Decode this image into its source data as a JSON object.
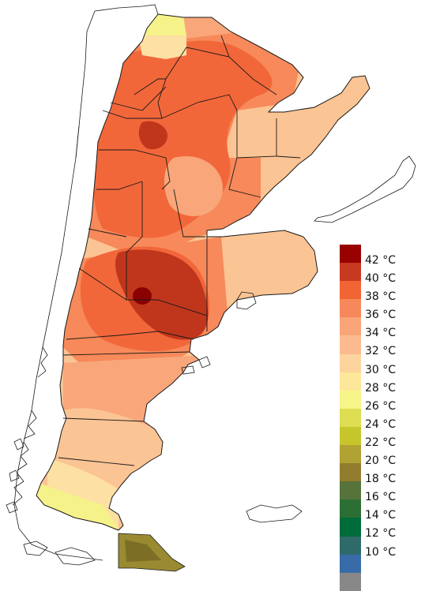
{
  "map": {
    "region": "Argentina",
    "colors": {
      "sea": "#ffffff",
      "outline": "#1a1a1a",
      "heat_darkest": "#8b0000",
      "heat_dark": "#c0361c",
      "heat_high": "#f2673a",
      "heat_mid": "#f7895a",
      "heat_low": "#f9a77a",
      "warm": "#fbc494",
      "mild": "#fde0a3",
      "cool_yellow": "#f6f28a",
      "olive": "#9a8a32"
    }
  },
  "legend": {
    "entries": [
      {
        "label": "42 °C",
        "color": "#990000"
      },
      {
        "label": "40 °C",
        "color": "#c83a20"
      },
      {
        "label": "38 °C",
        "color": "#f26433"
      },
      {
        "label": "36 °C",
        "color": "#f7885b"
      },
      {
        "label": "34 °C",
        "color": "#f9a479"
      },
      {
        "label": "32 °C",
        "color": "#fbbb8f"
      },
      {
        "label": "30 °C",
        "color": "#fdd49e"
      },
      {
        "label": "28 °C",
        "color": "#fde79b"
      },
      {
        "label": "26 °C",
        "color": "#f7f58a"
      },
      {
        "label": "24 °C",
        "color": "#dede52"
      },
      {
        "label": "22 °C",
        "color": "#c6c62c"
      },
      {
        "label": "20 °C",
        "color": "#b0a233"
      },
      {
        "label": "18 °C",
        "color": "#927c2e"
      },
      {
        "label": "16 °C",
        "color": "#55733a"
      },
      {
        "label": "14 °C",
        "color": "#2c6f34"
      },
      {
        "label": "12 °C",
        "color": "#006c3a"
      },
      {
        "label": "10 °C",
        "color": "#2f6a6a"
      },
      {
        "label": "",
        "color": "#386ca8"
      },
      {
        "label": "",
        "color": "#888888"
      }
    ]
  }
}
